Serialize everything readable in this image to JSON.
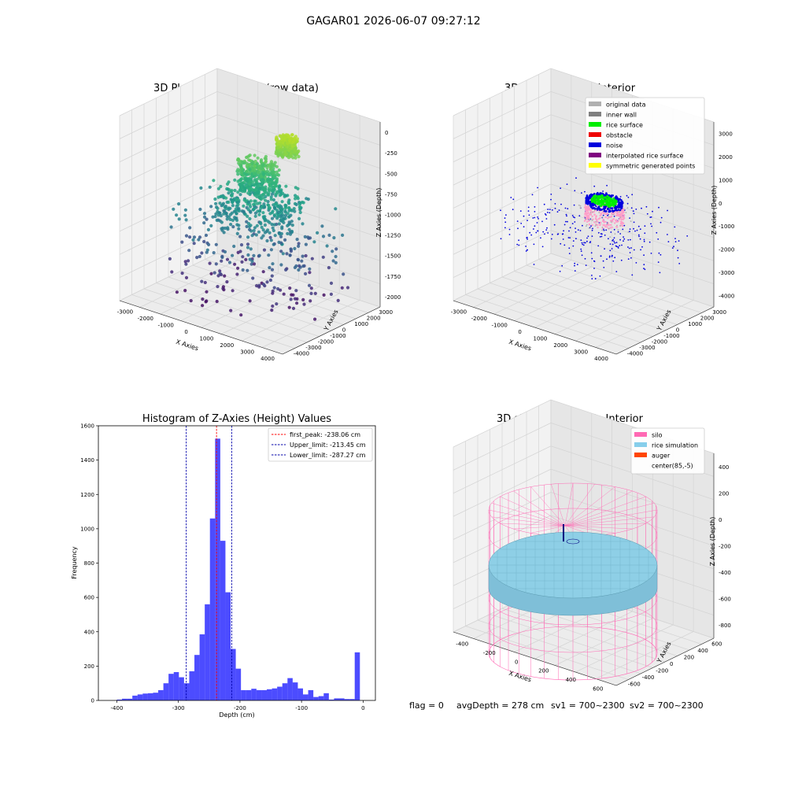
{
  "suptitle": "GAGAR01 2026-06-07 09:27:12",
  "footer": {
    "flag": "flag = 0",
    "avg_depth": "avgDepth = 278 cm",
    "sv1": "sv1 = 700~2300",
    "sv2": "sv2 = 700~2300"
  },
  "chart_data": [
    {
      "type": "scatter",
      "title": "3D Plot of Silo Interior(row data)",
      "xlabel": "X Axies",
      "ylabel": "Y Axies",
      "zlabel": "Z Axies (Depth)",
      "x_ticks": [
        "-3000",
        "-2000",
        "-1000",
        "0",
        "1000",
        "2000",
        "3000",
        "4000"
      ],
      "y_ticks": [
        "-4000",
        "-3000",
        "-2000",
        "-1000",
        "0",
        "1000",
        "2000",
        "3000"
      ],
      "z_ticks": [
        "-2000",
        "-1750",
        "-1500",
        "-1250",
        "-1000",
        "-750",
        "-500",
        "-250",
        "0"
      ],
      "xlim": [
        -3500,
        4500
      ],
      "ylim": [
        -4500,
        3500
      ],
      "zlim": [
        -2200,
        100
      ],
      "colormap": "viridis"
    },
    {
      "type": "scatter",
      "title": "3D classify of Silo Interior",
      "xlabel": "X Axies",
      "ylabel": "Y Axies",
      "zlabel": "Z Axies (Depth)",
      "x_ticks": [
        "-3000",
        "-2000",
        "-1000",
        "0",
        "1000",
        "2000",
        "3000",
        "4000"
      ],
      "y_ticks": [
        "-4000",
        "-3000",
        "-2000",
        "-1000",
        "0",
        "1000",
        "2000",
        "3000"
      ],
      "z_ticks": [
        "-4000",
        "-3000",
        "-2000",
        "-1000",
        "0",
        "1000",
        "2000",
        "3000"
      ],
      "xlim": [
        -3500,
        4500
      ],
      "ylim": [
        -4500,
        3500
      ],
      "zlim": [
        -4500,
        3500
      ],
      "legend": [
        {
          "label": "original data",
          "color": "#b0b0b0"
        },
        {
          "label": "inner wall",
          "color": "#808080"
        },
        {
          "label": "rice surface",
          "color": "#00ee00"
        },
        {
          "label": "obstacle",
          "color": "#ee0000"
        },
        {
          "label": "noise",
          "color": "#0000dd"
        },
        {
          "label": "interpolated rice surface",
          "color": "#800080"
        },
        {
          "label": "symmetric generated points",
          "color": "#ffff00"
        }
      ],
      "legend_loc": "upper right"
    },
    {
      "type": "bar",
      "title": "Histogram of Z-Axies (Height) Values",
      "xlabel": "Depth (cm)",
      "ylabel": "Frequency",
      "xlim": [
        -430,
        20
      ],
      "ylim": [
        0,
        1600
      ],
      "x_ticks": [
        -400,
        -300,
        -200,
        -100,
        0
      ],
      "y_ticks": [
        0,
        200,
        400,
        600,
        800,
        1000,
        1200,
        1400,
        1600
      ],
      "bin_start": -400,
      "bin_width": 8.4,
      "values": [
        5,
        10,
        10,
        28,
        35,
        40,
        42,
        45,
        60,
        100,
        155,
        165,
        135,
        100,
        170,
        265,
        385,
        560,
        1060,
        1525,
        930,
        630,
        300,
        185,
        60,
        60,
        68,
        60,
        60,
        65,
        70,
        80,
        100,
        130,
        105,
        70,
        35,
        60,
        20,
        25,
        42,
        5,
        12,
        12,
        8,
        8,
        280
      ],
      "bar_color": "#0000ff",
      "lines": [
        {
          "label": "first_peak: -238.06 cm",
          "x": -238.06,
          "color": "#ff0000"
        },
        {
          "label": "Upper_limit: -213.45 cm",
          "x": -213.45,
          "color": "#0000aa"
        },
        {
          "label": "Lower_limit: -287.27 cm",
          "x": -287.27,
          "color": "#0000aa"
        }
      ],
      "legend_loc": "upper right"
    },
    {
      "type": "surface",
      "title": "3D simulation of Silo Interior",
      "xlabel": "X Axies",
      "ylabel": "Y Axies",
      "zlabel": "Z Axies (Depth)",
      "x_ticks": [
        "-400",
        "-200",
        "0",
        "200",
        "400",
        "600"
      ],
      "y_ticks": [
        "-600",
        "-400",
        "-200",
        "0",
        "200",
        "400",
        "600"
      ],
      "z_ticks": [
        "-800",
        "-600",
        "-400",
        "-200",
        "0",
        "200",
        "400"
      ],
      "xlim": [
        -500,
        700
      ],
      "ylim": [
        -700,
        700
      ],
      "zlim": [
        -900,
        450
      ],
      "legend": [
        {
          "label": "silo",
          "color": "#ff69b4"
        },
        {
          "label": "rice simulation",
          "color": "#87ceeb"
        },
        {
          "label": "auger",
          "color": "#ff4500"
        },
        {
          "label": "center(85,-5)",
          "color": ""
        }
      ],
      "legend_loc": "upper right"
    }
  ]
}
